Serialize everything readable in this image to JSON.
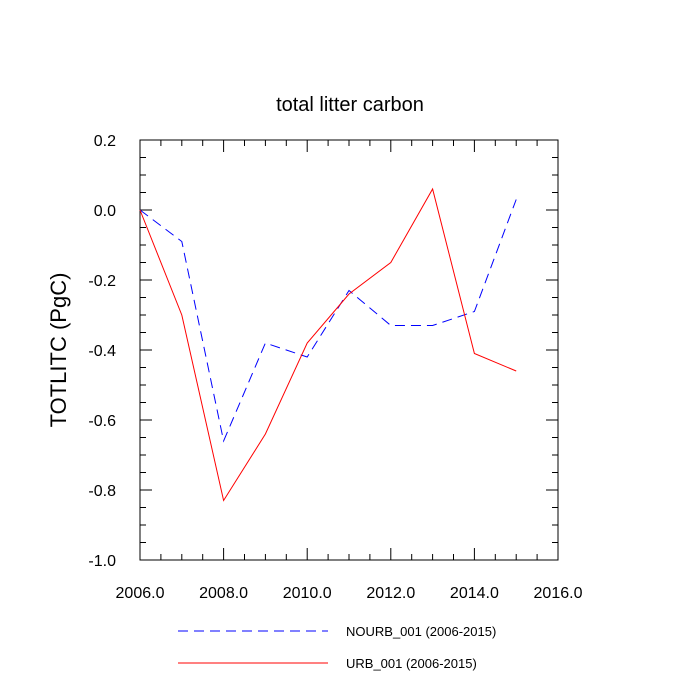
{
  "chart_data": {
    "type": "line",
    "title": "total litter carbon",
    "xlabel": "",
    "ylabel": "TOTLITC  (PgC)",
    "xlim": [
      2006,
      2016
    ],
    "ylim": [
      -1.0,
      0.2
    ],
    "xticks": [
      2006,
      2008,
      2010,
      2012,
      2014,
      2016
    ],
    "xtick_labels": [
      "2006.0",
      "2008.0",
      "2010.0",
      "2012.0",
      "2014.0",
      "2016.0"
    ],
    "yticks": [
      -1.0,
      -0.8,
      -0.6,
      -0.4,
      -0.2,
      0.0,
      0.2
    ],
    "ytick_labels": [
      "-1.0",
      "-0.8",
      "-0.6",
      "-0.4",
      "-0.2",
      "0.0",
      "0.2"
    ],
    "x": [
      2006,
      2007,
      2008,
      2009,
      2010,
      2011,
      2012,
      2013,
      2014,
      2015
    ],
    "series": [
      {
        "name": "NOURB_001 (2006-2015)",
        "color": "#0000ff",
        "dashed": true,
        "values": [
          0.0,
          -0.09,
          -0.66,
          -0.38,
          -0.42,
          -0.23,
          -0.33,
          -0.33,
          -0.29,
          0.03
        ]
      },
      {
        "name": "URB_001 (2006-2015)",
        "color": "#ff0000",
        "dashed": false,
        "values": [
          0.0,
          -0.3,
          -0.83,
          -0.64,
          -0.38,
          -0.24,
          -0.15,
          0.06,
          -0.41,
          -0.46
        ]
      }
    ],
    "legend_position": "bottom"
  }
}
